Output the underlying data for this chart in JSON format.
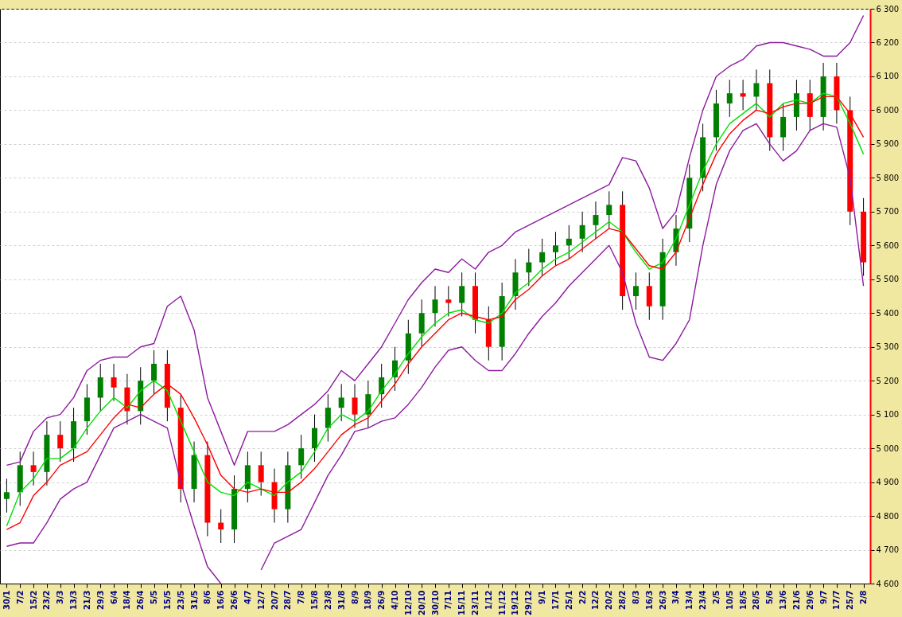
{
  "chart_data": {
    "type": "candlestick",
    "categories": [
      "30/1",
      "7/2",
      "15/2",
      "23/2",
      "3/3",
      "13/3",
      "21/3",
      "29/3",
      "6/4",
      "18/4",
      "26/4",
      "5/5",
      "15/5",
      "23/5",
      "31/5",
      "8/6",
      "16/6",
      "26/6",
      "4/7",
      "12/7",
      "20/7",
      "28/7",
      "7/8",
      "15/8",
      "23/8",
      "31/8",
      "8/9",
      "18/9",
      "26/9",
      "4/10",
      "12/10",
      "20/10",
      "30/10",
      "7/11",
      "15/11",
      "23/11",
      "1/12",
      "11/12",
      "19/12",
      "29/12",
      "9/1",
      "17/1",
      "25/1",
      "2/2",
      "12/2",
      "20/2",
      "28/2",
      "8/3",
      "16/3",
      "26/3",
      "3/4",
      "13/4",
      "23/4",
      "2/5",
      "10/5",
      "18/5",
      "28/5",
      "5/6",
      "13/6",
      "21/6",
      "29/6",
      "9/7",
      "17/7",
      "25/7",
      "2/8"
    ],
    "ylim": [
      4600,
      6300
    ],
    "yticks": [
      {
        "value": 4600,
        "label": "4 600"
      },
      {
        "value": 4700,
        "label": "4 700"
      },
      {
        "value": 4800,
        "label": "4 800"
      },
      {
        "value": 4900,
        "label": "4 900"
      },
      {
        "value": 5000,
        "label": "5 000"
      },
      {
        "value": 5100,
        "label": "5 100"
      },
      {
        "value": 5200,
        "label": "5 200"
      },
      {
        "value": 5300,
        "label": "5 300"
      },
      {
        "value": 5400,
        "label": "5 400"
      },
      {
        "value": 5500,
        "label": "5 500"
      },
      {
        "value": 5600,
        "label": "5 600"
      },
      {
        "value": 5700,
        "label": "5 700"
      },
      {
        "value": 5800,
        "label": "5 800"
      },
      {
        "value": 5900,
        "label": "5 900"
      },
      {
        "value": 6000,
        "label": "6 000"
      },
      {
        "value": 6100,
        "label": "6 100"
      },
      {
        "value": 6200,
        "label": "6 200"
      },
      {
        "value": 6300,
        "label": "6 300"
      }
    ],
    "grid": "y",
    "ohlc": [
      [
        4850,
        4910,
        4810,
        4870
      ],
      [
        4870,
        4990,
        4830,
        4950
      ],
      [
        4950,
        4990,
        4890,
        4930
      ],
      [
        4930,
        5080,
        4890,
        5040
      ],
      [
        5040,
        5080,
        4960,
        5000
      ],
      [
        5000,
        5120,
        4960,
        5080
      ],
      [
        5080,
        5190,
        5040,
        5150
      ],
      [
        5150,
        5250,
        5110,
        5210
      ],
      [
        5210,
        5250,
        5140,
        5180
      ],
      [
        5180,
        5220,
        5070,
        5110
      ],
      [
        5110,
        5240,
        5070,
        5200
      ],
      [
        5200,
        5290,
        5160,
        5250
      ],
      [
        5250,
        5290,
        5080,
        5120
      ],
      [
        5120,
        5160,
        4840,
        4880
      ],
      [
        4880,
        5020,
        4840,
        4980
      ],
      [
        4980,
        5020,
        4740,
        4780
      ],
      [
        4780,
        4820,
        4720,
        4760
      ],
      [
        4760,
        4920,
        4720,
        4880
      ],
      [
        4880,
        4990,
        4840,
        4950
      ],
      [
        4950,
        4990,
        4860,
        4900
      ],
      [
        4900,
        4940,
        4780,
        4820
      ],
      [
        4820,
        4990,
        4780,
        4950
      ],
      [
        4950,
        5040,
        4910,
        5000
      ],
      [
        5000,
        5100,
        4960,
        5060
      ],
      [
        5060,
        5160,
        5020,
        5120
      ],
      [
        5120,
        5190,
        5080,
        5150
      ],
      [
        5150,
        5190,
        5060,
        5100
      ],
      [
        5100,
        5200,
        5060,
        5160
      ],
      [
        5160,
        5250,
        5120,
        5210
      ],
      [
        5210,
        5300,
        5170,
        5260
      ],
      [
        5260,
        5380,
        5220,
        5340
      ],
      [
        5340,
        5440,
        5300,
        5400
      ],
      [
        5400,
        5480,
        5360,
        5440
      ],
      [
        5440,
        5480,
        5390,
        5430
      ],
      [
        5430,
        5520,
        5390,
        5480
      ],
      [
        5480,
        5520,
        5340,
        5380
      ],
      [
        5380,
        5420,
        5260,
        5300
      ],
      [
        5300,
        5490,
        5260,
        5450
      ],
      [
        5450,
        5560,
        5410,
        5520
      ],
      [
        5520,
        5590,
        5480,
        5550
      ],
      [
        5550,
        5620,
        5510,
        5580
      ],
      [
        5580,
        5640,
        5540,
        5600
      ],
      [
        5600,
        5660,
        5560,
        5620
      ],
      [
        5620,
        5700,
        5580,
        5660
      ],
      [
        5660,
        5730,
        5620,
        5690
      ],
      [
        5690,
        5760,
        5650,
        5720
      ],
      [
        5720,
        5760,
        5410,
        5450
      ],
      [
        5450,
        5520,
        5410,
        5480
      ],
      [
        5480,
        5520,
        5380,
        5420
      ],
      [
        5420,
        5620,
        5380,
        5580
      ],
      [
        5580,
        5690,
        5540,
        5650
      ],
      [
        5650,
        5840,
        5610,
        5800
      ],
      [
        5800,
        5960,
        5760,
        5920
      ],
      [
        5920,
        6060,
        5880,
        6020
      ],
      [
        6020,
        6090,
        5980,
        6050
      ],
      [
        6050,
        6090,
        6000,
        6040
      ],
      [
        6040,
        6120,
        6000,
        6080
      ],
      [
        6080,
        6120,
        5880,
        5920
      ],
      [
        5920,
        6020,
        5880,
        5980
      ],
      [
        5980,
        6090,
        5940,
        6050
      ],
      [
        6050,
        6090,
        5940,
        5980
      ],
      [
        5980,
        6140,
        5940,
        6100
      ],
      [
        6100,
        6140,
        5960,
        6000
      ],
      [
        6000,
        6040,
        5660,
        5700
      ],
      [
        5700,
        5740,
        5510,
        5550
      ]
    ],
    "colors": [
      "#008000",
      "#008000",
      "#ff0000",
      "#008000",
      "#ff0000",
      "#008000",
      "#008000",
      "#008000",
      "#ff0000",
      "#ff0000",
      "#008000",
      "#008000",
      "#ff0000",
      "#ff0000",
      "#008000",
      "#ff0000",
      "#ff0000",
      "#008000",
      "#008000",
      "#ff0000",
      "#ff0000",
      "#008000",
      "#008000",
      "#008000",
      "#008000",
      "#008000",
      "#ff0000",
      "#008000",
      "#008000",
      "#008000",
      "#008000",
      "#008000",
      "#008000",
      "#ff0000",
      "#008000",
      "#ff0000",
      "#ff0000",
      "#008000",
      "#008000",
      "#008000",
      "#008000",
      "#008000",
      "#008000",
      "#008000",
      "#008000",
      "#008000",
      "#ff0000",
      "#008000",
      "#ff0000",
      "#008000",
      "#008000",
      "#008000",
      "#008000",
      "#008000",
      "#008000",
      "#ff0000",
      "#008000",
      "#ff0000",
      "#008000",
      "#008000",
      "#ff0000",
      "#008000",
      "#ff0000",
      "#ff0000",
      "#ff0000"
    ],
    "series": [
      {
        "type": "line",
        "color": "#8b1a9e",
        "values": [
          4950,
          4960,
          5050,
          5090,
          5100,
          5150,
          5230,
          5260,
          5270,
          5270,
          5300,
          5310,
          5420,
          5450,
          5350,
          5150,
          5050,
          4950,
          5050,
          5050,
          5050,
          5070,
          5100,
          5130,
          5170,
          5230,
          5200,
          5250,
          5300,
          5370,
          5440,
          5490,
          5530,
          5520,
          5560,
          5530,
          5580,
          5600,
          5640,
          5660,
          5680,
          5700,
          5720,
          5740,
          5760,
          5780,
          5860,
          5850,
          5770,
          5650,
          5700,
          5860,
          6000,
          6100,
          6130,
          6150,
          6190,
          6200,
          6200,
          6190,
          6180,
          6160,
          6160,
          6200,
          6280
        ]
      },
      {
        "type": "line",
        "color": "#8b1a9e",
        "values": [
          4710,
          4720,
          4720,
          4780,
          4850,
          4880,
          4900,
          4980,
          5060,
          5080,
          5100,
          5080,
          5060,
          4900,
          4770,
          4650,
          4600,
          null,
          null,
          4640,
          4720,
          4740,
          4760,
          4840,
          4920,
          4980,
          5050,
          5060,
          5080,
          5090,
          5130,
          5180,
          5240,
          5290,
          5300,
          5260,
          5230,
          5230,
          5280,
          5340,
          5390,
          5430,
          5480,
          5520,
          5560,
          5600,
          5520,
          5370,
          5270,
          5260,
          5310,
          5380,
          5600,
          5780,
          5880,
          5940,
          5960,
          5900,
          5850,
          5880,
          5940,
          5960,
          5950,
          5800,
          5480
        ]
      },
      {
        "type": "line",
        "color": "#00e000",
        "values": [
          4770,
          4870,
          4910,
          4970,
          4970,
          5000,
          5060,
          5110,
          5150,
          5120,
          5170,
          5200,
          5170,
          5080,
          4990,
          4900,
          4870,
          4860,
          4900,
          4880,
          4860,
          4900,
          4930,
          4990,
          5060,
          5100,
          5080,
          5110,
          5170,
          5220,
          5280,
          5330,
          5370,
          5400,
          5410,
          5380,
          5370,
          5400,
          5460,
          5490,
          5530,
          5560,
          5580,
          5610,
          5640,
          5670,
          5640,
          5580,
          5530,
          5550,
          5620,
          5720,
          5820,
          5900,
          5960,
          5990,
          6020,
          5980,
          6020,
          6030,
          6020,
          6050,
          6040,
          5960,
          5870
        ]
      },
      {
        "type": "line",
        "color": "#ff0000",
        "values": [
          4760,
          4780,
          4860,
          4900,
          4950,
          4970,
          4990,
          5040,
          5090,
          5130,
          5120,
          5160,
          5190,
          5160,
          5090,
          5010,
          4920,
          4880,
          4870,
          4880,
          4870,
          4870,
          4900,
          4940,
          4990,
          5040,
          5070,
          5090,
          5140,
          5190,
          5250,
          5300,
          5340,
          5380,
          5400,
          5390,
          5380,
          5390,
          5440,
          5470,
          5510,
          5540,
          5560,
          5590,
          5620,
          5650,
          5640,
          5590,
          5540,
          5530,
          5580,
          5680,
          5780,
          5870,
          5930,
          5970,
          6000,
          5990,
          6010,
          6020,
          6020,
          6040,
          6040,
          5990,
          5920
        ]
      }
    ]
  }
}
